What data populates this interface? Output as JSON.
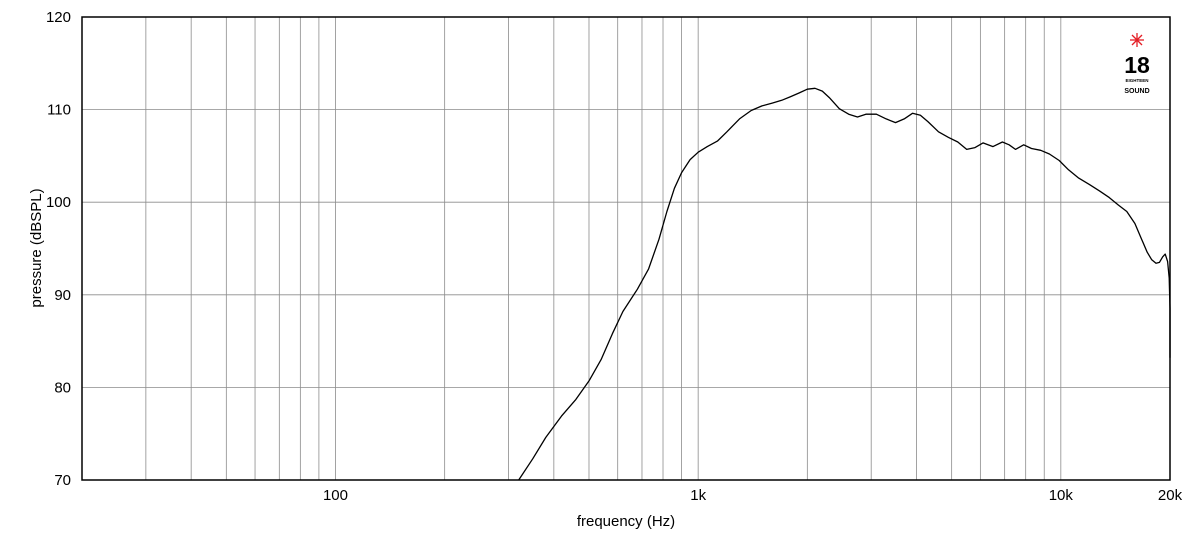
{
  "chart_data": {
    "type": "line",
    "xlabel": "frequency (Hz)",
    "ylabel": "pressure (dBSPL)",
    "xscale": "log",
    "xlim": [
      20,
      20000
    ],
    "ylim": [
      70,
      120
    ],
    "grid": true,
    "x_major_ticks": [
      {
        "value": 100,
        "label": "100"
      },
      {
        "value": 1000,
        "label": "1k"
      },
      {
        "value": 10000,
        "label": "10k"
      },
      {
        "value": 20000,
        "label": "20k"
      }
    ],
    "x_grid_lines": [
      30,
      40,
      50,
      60,
      70,
      80,
      90,
      100,
      200,
      300,
      400,
      500,
      600,
      700,
      800,
      900,
      1000,
      2000,
      3000,
      4000,
      5000,
      6000,
      7000,
      8000,
      9000,
      10000
    ],
    "y_ticks": [
      {
        "value": 70,
        "label": "70"
      },
      {
        "value": 80,
        "label": "80"
      },
      {
        "value": 90,
        "label": "90"
      },
      {
        "value": 100,
        "label": "100"
      },
      {
        "value": 110,
        "label": "110"
      },
      {
        "value": 120,
        "label": "120"
      }
    ],
    "line_color": "#000000",
    "grid_color": "#8c8c8c",
    "series": [
      {
        "points": [
          [
            320,
            70.0
          ],
          [
            350,
            72.3
          ],
          [
            380,
            74.6
          ],
          [
            420,
            76.9
          ],
          [
            460,
            78.7
          ],
          [
            500,
            80.7
          ],
          [
            540,
            83.0
          ],
          [
            580,
            85.8
          ],
          [
            620,
            88.2
          ],
          [
            680,
            90.6
          ],
          [
            730,
            92.8
          ],
          [
            780,
            96.0
          ],
          [
            820,
            99.0
          ],
          [
            860,
            101.5
          ],
          [
            900,
            103.2
          ],
          [
            950,
            104.6
          ],
          [
            1000,
            105.4
          ],
          [
            1060,
            106.0
          ],
          [
            1130,
            106.6
          ],
          [
            1200,
            107.6
          ],
          [
            1300,
            109.0
          ],
          [
            1400,
            109.9
          ],
          [
            1500,
            110.4
          ],
          [
            1600,
            110.7
          ],
          [
            1700,
            111.0
          ],
          [
            1800,
            111.4
          ],
          [
            1900,
            111.8
          ],
          [
            2000,
            112.2
          ],
          [
            2100,
            112.3
          ],
          [
            2200,
            112.0
          ],
          [
            2300,
            111.3
          ],
          [
            2450,
            110.1
          ],
          [
            2600,
            109.5
          ],
          [
            2750,
            109.2
          ],
          [
            2900,
            109.5
          ],
          [
            3100,
            109.5
          ],
          [
            3300,
            109.0
          ],
          [
            3500,
            108.6
          ],
          [
            3700,
            109.0
          ],
          [
            3900,
            109.6
          ],
          [
            4100,
            109.4
          ],
          [
            4300,
            108.7
          ],
          [
            4600,
            107.6
          ],
          [
            4900,
            107.0
          ],
          [
            5200,
            106.5
          ],
          [
            5500,
            105.7
          ],
          [
            5800,
            105.9
          ],
          [
            6100,
            106.4
          ],
          [
            6500,
            106.0
          ],
          [
            6900,
            106.5
          ],
          [
            7200,
            106.2
          ],
          [
            7500,
            105.7
          ],
          [
            7900,
            106.2
          ],
          [
            8300,
            105.8
          ],
          [
            8800,
            105.6
          ],
          [
            9300,
            105.2
          ],
          [
            9900,
            104.5
          ],
          [
            10500,
            103.5
          ],
          [
            11200,
            102.6
          ],
          [
            12000,
            101.9
          ],
          [
            12800,
            101.2
          ],
          [
            13600,
            100.5
          ],
          [
            14400,
            99.7
          ],
          [
            15200,
            99.0
          ],
          [
            16000,
            97.7
          ],
          [
            16700,
            96.0
          ],
          [
            17300,
            94.6
          ],
          [
            17800,
            93.8
          ],
          [
            18300,
            93.4
          ],
          [
            18700,
            93.5
          ],
          [
            19100,
            94.1
          ],
          [
            19400,
            94.4
          ],
          [
            19700,
            93.6
          ],
          [
            19900,
            91.8
          ],
          [
            20050,
            88.5
          ],
          [
            20180,
            84.5
          ],
          [
            20250,
            83.2
          ]
        ]
      }
    ]
  },
  "logo": {
    "number": "18",
    "line1": "EIGHTEEN",
    "line2": "SOUND",
    "star_color": "#e41e26"
  }
}
